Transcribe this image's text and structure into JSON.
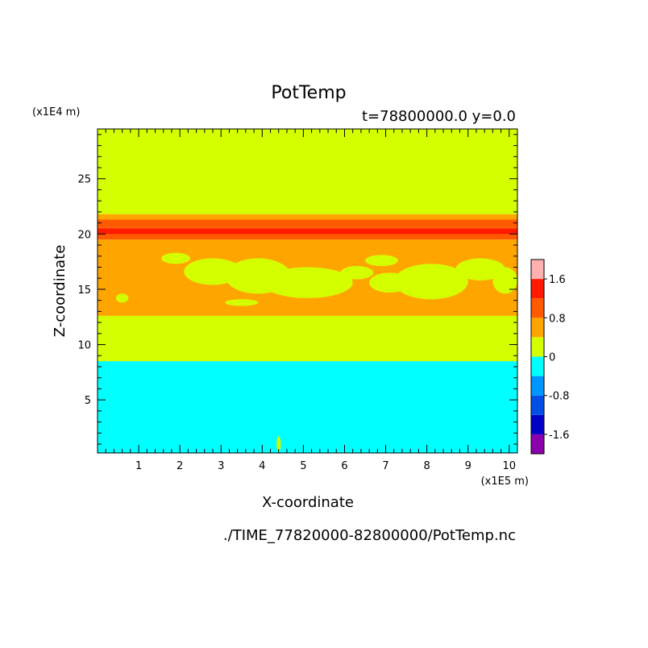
{
  "chart_data": {
    "type": "heatmap",
    "title": "PotTemp",
    "subtitle": "t=78800000.0 y=0.0",
    "xlabel": "X-coordinate",
    "ylabel": "Z-coordinate",
    "x_scale_label": "(x1E5 m)",
    "y_scale_label": "(x1E4 m)",
    "source_label": "./TIME_77820000-82800000/PotTemp.nc",
    "xlim": [
      0,
      10.2
    ],
    "ylim": [
      0.2,
      29.5
    ],
    "x_ticks": [
      1,
      2,
      3,
      4,
      5,
      6,
      7,
      8,
      9,
      10
    ],
    "x_tick_labels": [
      "1",
      "2",
      "3",
      "4",
      "5",
      "6",
      "7",
      "8",
      "9",
      "10"
    ],
    "y_ticks": [
      5,
      10,
      15,
      20,
      25
    ],
    "y_tick_labels": [
      "5",
      "10",
      "15",
      "20",
      "25"
    ],
    "colorbar": {
      "levels": [
        -2.0,
        -1.6,
        -1.2,
        -0.8,
        -0.4,
        0.0,
        0.4,
        0.8,
        1.2,
        1.6,
        2.0
      ],
      "colors": [
        "#8a00aa",
        "#0000c8",
        "#0050e6",
        "#0096ff",
        "#00ffff",
        "#d4ff00",
        "#ffa500",
        "#ff5a00",
        "#ff1a00",
        "#ffb0b0"
      ],
      "tick_values": [
        -1.6,
        -0.8,
        0,
        0.8,
        1.6
      ],
      "tick_labels": [
        "-1.6",
        "-0.8",
        "0",
        "0.8",
        "1.6"
      ]
    },
    "bands": [
      {
        "z_from": 0.2,
        "z_to": 8.5,
        "value": -0.2
      },
      {
        "z_from": 8.5,
        "z_to": 12.6,
        "value": 0.2
      },
      {
        "z_from": 12.6,
        "z_to": 19.5,
        "value": 0.6
      },
      {
        "z_from": 19.5,
        "z_to": 20.6,
        "value": 1.0
      },
      {
        "z_from": 20.0,
        "z_to": 20.5,
        "value": 1.4
      },
      {
        "z_from": 20.6,
        "z_to": 21.3,
        "value": 1.0
      },
      {
        "z_from": 21.3,
        "z_to": 21.8,
        "value": 0.6
      },
      {
        "z_from": 21.8,
        "z_to": 29.5,
        "value": 0.2
      }
    ],
    "patches": [
      {
        "x": 1.9,
        "z": 17.8,
        "rx": 0.35,
        "rz": 0.5,
        "value": 0.2
      },
      {
        "x": 2.8,
        "z": 16.6,
        "rx": 0.7,
        "rz": 1.2,
        "value": 0.2
      },
      {
        "x": 3.9,
        "z": 16.2,
        "rx": 0.8,
        "rz": 1.6,
        "value": 0.2
      },
      {
        "x": 5.1,
        "z": 15.6,
        "rx": 1.1,
        "rz": 1.4,
        "value": 0.2
      },
      {
        "x": 6.3,
        "z": 16.5,
        "rx": 0.4,
        "rz": 0.6,
        "value": 0.2
      },
      {
        "x": 6.9,
        "z": 17.6,
        "rx": 0.4,
        "rz": 0.5,
        "value": 0.2
      },
      {
        "x": 7.1,
        "z": 15.6,
        "rx": 0.5,
        "rz": 0.9,
        "value": 0.2
      },
      {
        "x": 8.1,
        "z": 15.7,
        "rx": 0.9,
        "rz": 1.6,
        "value": 0.2
      },
      {
        "x": 9.3,
        "z": 16.8,
        "rx": 0.6,
        "rz": 1.0,
        "value": 0.2
      },
      {
        "x": 9.9,
        "z": 15.8,
        "rx": 0.3,
        "rz": 1.2,
        "value": 0.2
      },
      {
        "x": 0.6,
        "z": 14.2,
        "rx": 0.15,
        "rz": 0.4,
        "value": 0.2
      },
      {
        "x": 3.5,
        "z": 13.8,
        "rx": 0.4,
        "rz": 0.3,
        "value": 0.2
      },
      {
        "x": 4.4,
        "z": 1.0,
        "rx": 0.05,
        "rz": 0.7,
        "value": 0.2
      }
    ]
  }
}
